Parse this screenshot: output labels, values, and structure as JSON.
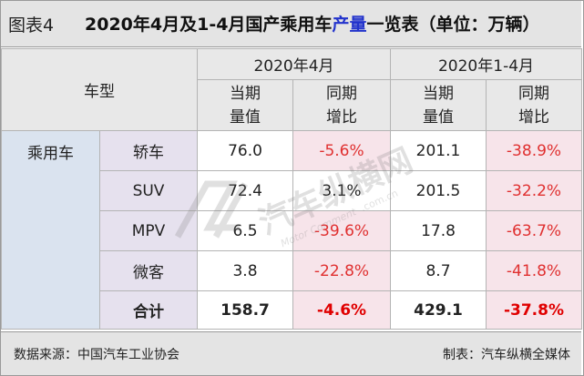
{
  "header": {
    "figure_label": "图表4",
    "title_part1": "2020年4月及1-4月国产乘用车",
    "title_highlight": "产量",
    "title_part2": "一览表（单位：万辆）"
  },
  "table": {
    "corner_label": "车型",
    "group_headers": [
      "2020年4月",
      "2020年1-4月"
    ],
    "sub_headers": [
      [
        "当期",
        "量值"
      ],
      [
        "同期",
        "增比"
      ],
      [
        "当期",
        "量值"
      ],
      [
        "同期",
        "增比"
      ]
    ],
    "category": "乘用车",
    "rows": [
      {
        "type": "轿车",
        "apr_value": "76.0",
        "apr_yoy": "-5.6%",
        "ytd_value": "201.1",
        "ytd_yoy": "-38.9%"
      },
      {
        "type": "SUV",
        "apr_value": "72.4",
        "apr_yoy": "3.1%",
        "ytd_value": "201.5",
        "ytd_yoy": "-32.2%"
      },
      {
        "type": "MPV",
        "apr_value": "6.5",
        "apr_yoy": "-39.6%",
        "ytd_value": "17.8",
        "ytd_yoy": "-63.7%"
      },
      {
        "type": "微客",
        "apr_value": "3.8",
        "apr_yoy": "-22.8%",
        "ytd_value": "8.7",
        "ytd_yoy": "-41.8%"
      }
    ],
    "total": {
      "label": "合计",
      "apr_value": "158.7",
      "apr_yoy": "-4.6%",
      "ytd_value": "429.1",
      "ytd_yoy": "-37.8%"
    }
  },
  "footer": {
    "source": "数据来源：中国汽车工业协会",
    "maker": "制表：汽车纵横全媒体"
  },
  "watermark": {
    "icon": "car-logo-icon",
    "text": "汽车纵横网",
    "subtext": "Motor Comment",
    "domain": ".com.cn"
  },
  "colors": {
    "negative": "#e03030",
    "title_highlight": "#2233cc",
    "category_bg": "#dae3ef",
    "type_bg": "#e6e1ee",
    "negative_bg": "#f7e4ea"
  }
}
